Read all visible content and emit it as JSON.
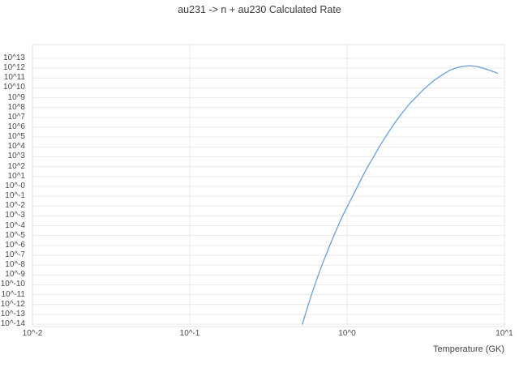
{
  "chart_data": {
    "type": "line",
    "title": "au231 -> n + au230 Calculated Rate",
    "xlabel": "Temperature (GK)",
    "ylabel": "",
    "legend": "none",
    "grid": true,
    "background_color": "#ffffff",
    "grid_color": "#e9e9e9",
    "frame_color": "#e3e3e3",
    "text_color": "#4a4a4a",
    "x_axis": {
      "scale": "log",
      "min_exp": -2,
      "max_exp": 1,
      "tick_labels": [
        "10^-2",
        "10^-1",
        "10^0",
        "10^1"
      ]
    },
    "y_axis": {
      "scale": "log",
      "min_exp": -14,
      "max_exp": 13,
      "tick_labels": [
        "10^13",
        "10^12",
        "10^11",
        "10^10",
        "10^9",
        "10^8",
        "10^7",
        "10^6",
        "10^5",
        "10^4",
        "10^3",
        "10^2",
        "10^1",
        "10^-0",
        "10^-1",
        "10^-2",
        "10^-3",
        "10^-4",
        "10^-5",
        "10^-6",
        "10^-7",
        "10^-8",
        "10^-9",
        "10^-10",
        "10^-11",
        "10^-12",
        "10^-13",
        "10^-14"
      ]
    },
    "series": [
      {
        "name": "calculated rate",
        "color": "#6a9fd8",
        "line_width": 1.3,
        "x_gk": [
          0.52,
          0.56,
          0.6,
          0.65,
          0.7,
          0.75,
          0.8,
          0.85,
          0.9,
          0.95,
          1.0,
          1.1,
          1.2,
          1.3,
          1.4,
          1.5,
          1.6,
          1.8,
          2.0,
          2.2,
          2.5,
          2.8,
          3.0,
          3.3,
          3.6,
          4.0,
          4.5,
          5.0,
          5.5,
          6.0,
          6.5,
          7.0,
          7.5,
          8.0,
          8.5,
          9.0
        ],
        "log10_rate": [
          -14,
          -12.3,
          -10.8,
          -9.2,
          -7.8,
          -6.6,
          -5.5,
          -4.5,
          -3.6,
          -2.8,
          -2.1,
          -0.8,
          0.4,
          1.5,
          2.4,
          3.2,
          4.0,
          5.3,
          6.4,
          7.3,
          8.4,
          9.2,
          9.7,
          10.3,
          10.8,
          11.3,
          11.8,
          12.05,
          12.2,
          12.25,
          12.2,
          12.1,
          11.95,
          11.8,
          11.65,
          11.5
        ]
      }
    ]
  }
}
